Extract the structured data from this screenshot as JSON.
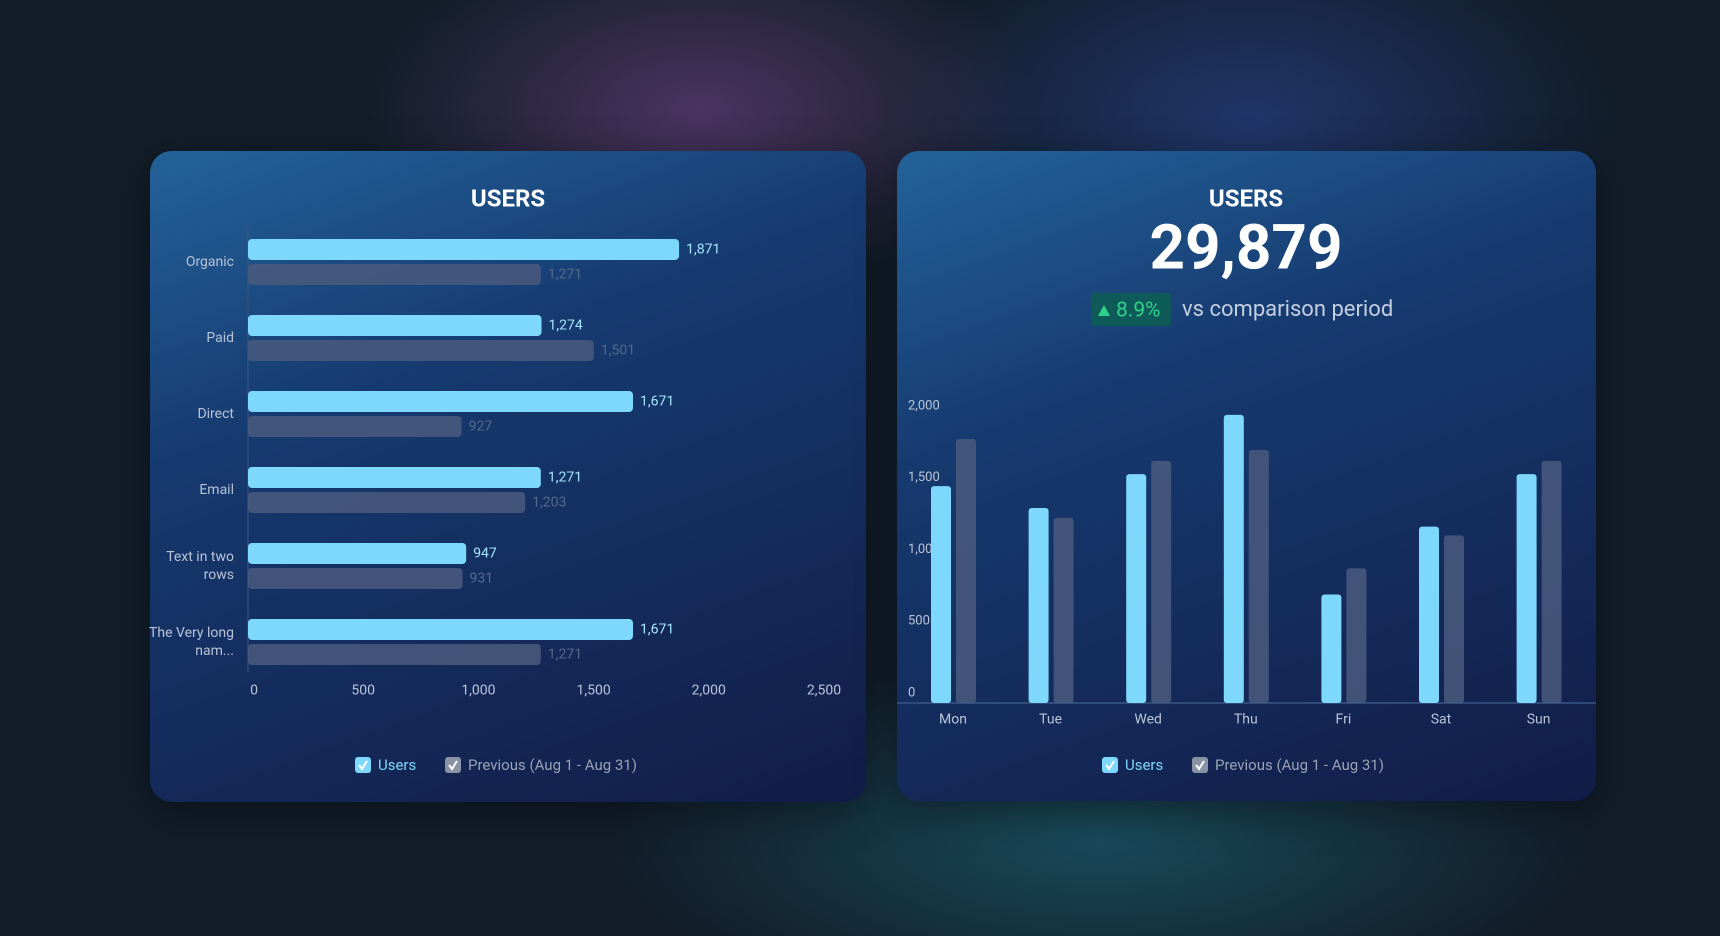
{
  "chart_data": [
    {
      "type": "bar",
      "orientation": "horizontal",
      "title": "USERS",
      "categories": [
        "Organic",
        "Paid",
        "Direct",
        "Email",
        "Text in two rows",
        "The Very long nam..."
      ],
      "series": [
        {
          "name": "Users",
          "color": "#7dd8fb",
          "values": [
            1871,
            1274,
            1671,
            1271,
            947,
            1671
          ],
          "value_labels": [
            "1,871",
            "1,274",
            "1,671",
            "1,271",
            "947",
            "1,671"
          ]
        },
        {
          "name": "Previous (Aug 1 - Aug 31)",
          "color": "#4a5b7e",
          "values": [
            1271,
            1501,
            927,
            1203,
            931,
            1271
          ],
          "value_labels": [
            "1,271",
            "1,501",
            "927",
            "1,203",
            "931",
            "1,271"
          ]
        }
      ],
      "xlim": [
        0,
        2500
      ],
      "xticks": [
        0,
        500,
        {
          "value": 1000,
          "label": "1,000"
        },
        {
          "value": 1500,
          "label": "1,500"
        },
        {
          "value": 2000,
          "label": "2,000"
        },
        {
          "value": 2500,
          "label": "2,500"
        }
      ]
    },
    {
      "type": "bar",
      "orientation": "vertical",
      "title": "USERS",
      "kpi": "29,879",
      "change": "8.9%",
      "change_text": "vs comparison period",
      "categories": [
        "Mon",
        "Tue",
        "Wed",
        "Thu",
        "Fri",
        "Sat",
        "Sun"
      ],
      "series": [
        {
          "name": "Users",
          "color": "#7dd8fb",
          "values": [
            1511,
            1359,
            1595,
            2008,
            756,
            1229,
            1595
          ]
        },
        {
          "name": "Previous (Aug 1 - Aug 31)",
          "color": "#4a5b7e",
          "values": [
            1840,
            1290,
            1687,
            1763,
            939,
            1168,
            1687
          ]
        }
      ],
      "ylim": [
        0,
        2000
      ],
      "yticks": [
        0,
        500,
        {
          "value": 1000,
          "label": "1,000"
        },
        {
          "value": 1500,
          "label": "1,500"
        },
        {
          "value": 2000,
          "label": "2,000"
        }
      ]
    }
  ]
}
